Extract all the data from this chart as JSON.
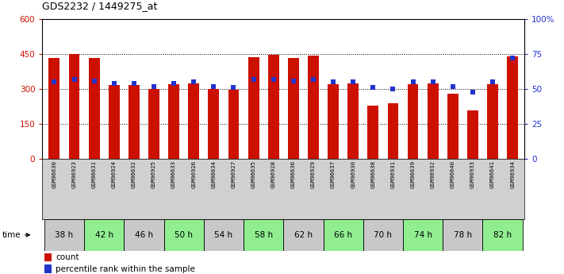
{
  "title": "GDS2232 / 1449275_at",
  "samples": [
    "GSM96630",
    "GSM96923",
    "GSM96631",
    "GSM96924",
    "GSM96632",
    "GSM96925",
    "GSM96633",
    "GSM96926",
    "GSM96634",
    "GSM96927",
    "GSM96635",
    "GSM96928",
    "GSM96636",
    "GSM96929",
    "GSM96637",
    "GSM96930",
    "GSM96638",
    "GSM96931",
    "GSM96639",
    "GSM96932",
    "GSM96640",
    "GSM96933",
    "GSM96641",
    "GSM96934"
  ],
  "counts": [
    432,
    452,
    432,
    318,
    318,
    302,
    322,
    326,
    300,
    297,
    437,
    448,
    432,
    443,
    320,
    326,
    230,
    240,
    322,
    323,
    280,
    210,
    320,
    440
  ],
  "percentiles": [
    55,
    57,
    56,
    54,
    54,
    52,
    54,
    55,
    52,
    51,
    57,
    57,
    56,
    57,
    55,
    55,
    51,
    50,
    55,
    55,
    52,
    48,
    55,
    72
  ],
  "time_groups": [
    {
      "label": "38 h",
      "n": 2,
      "color": "#c8c8c8"
    },
    {
      "label": "42 h",
      "n": 2,
      "color": "#90ee90"
    },
    {
      "label": "46 h",
      "n": 2,
      "color": "#c8c8c8"
    },
    {
      "label": "50 h",
      "n": 2,
      "color": "#90ee90"
    },
    {
      "label": "54 h",
      "n": 2,
      "color": "#c8c8c8"
    },
    {
      "label": "58 h",
      "n": 2,
      "color": "#90ee90"
    },
    {
      "label": "62 h",
      "n": 2,
      "color": "#c8c8c8"
    },
    {
      "label": "66 h",
      "n": 2,
      "color": "#90ee90"
    },
    {
      "label": "70 h",
      "n": 2,
      "color": "#c8c8c8"
    },
    {
      "label": "74 h",
      "n": 2,
      "color": "#90ee90"
    },
    {
      "label": "78 h",
      "n": 2,
      "color": "#c8c8c8"
    },
    {
      "label": "82 h",
      "n": 2,
      "color": "#90ee90"
    }
  ],
  "bar_color": "#cc1100",
  "marker_color": "#2233cc",
  "left_ylim": [
    0,
    600
  ],
  "right_ylim": [
    0,
    100
  ],
  "left_yticks": [
    0,
    150,
    300,
    450,
    600
  ],
  "right_yticks": [
    0,
    25,
    50,
    75,
    100
  ],
  "left_yticklabels": [
    "0",
    "150",
    "300",
    "450",
    "600"
  ],
  "right_yticklabels": [
    "0",
    "25",
    "50",
    "75",
    "100%"
  ],
  "bar_width": 0.55,
  "grid_dotted_at": [
    150,
    300,
    450
  ],
  "background_color": "#ffffff",
  "sample_row_bg": "#d0d0d0",
  "legend_count_label": "count",
  "legend_pct_label": "percentile rank within the sample"
}
